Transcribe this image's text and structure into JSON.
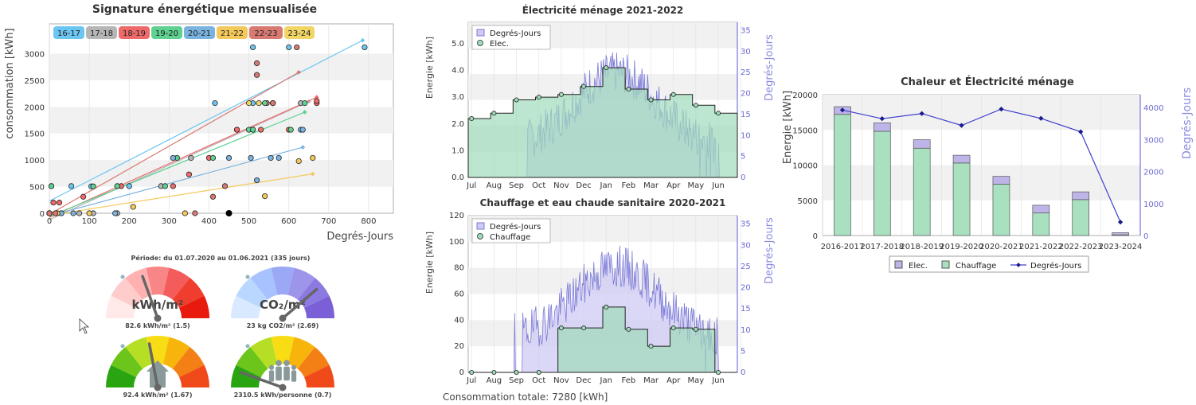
{
  "colors": {
    "blue_axis": "#5a5ad8",
    "elec": "#bfb4e8",
    "chauffage": "#a9e0bf",
    "line": "#2a2ab0"
  },
  "chart_data": [
    {
      "id": "signature",
      "type": "scatter",
      "title": "Signature énergétique mensualisée",
      "xlabel": "Degrés-Jours",
      "ylabel": "consommation [kWh]",
      "xlim": [
        -5,
        860
      ],
      "ylim": [
        -250,
        3300
      ],
      "xticks": [
        0,
        100,
        200,
        300,
        400,
        500,
        600,
        700,
        800
      ],
      "yticks": [
        0,
        500,
        1000,
        1500,
        2000,
        2500,
        3000
      ],
      "legend_position": "top",
      "series": [
        {
          "name": "16-17",
          "color": "#6bc6f2",
          "points": [
            [
              5,
              510
            ],
            [
              55,
              510
            ],
            [
              105,
              505
            ],
            [
              200,
              510
            ],
            [
              415,
              2070
            ],
            [
              510,
              2070
            ],
            [
              510,
              3120
            ],
            [
              600,
              3120
            ],
            [
              790,
              3120
            ]
          ],
          "fit": [
            [
              0,
              230
            ],
            [
              785,
              3250
            ]
          ]
        },
        {
          "name": "17-18",
          "color": "#b6b6b6",
          "points": [
            [
              0,
              0
            ],
            [
              30,
              0
            ],
            [
              75,
              0
            ],
            [
              110,
              0
            ],
            [
              170,
              0
            ],
            [
              280,
              510
            ],
            [
              355,
              1040
            ],
            [
              470,
              1570
            ],
            [
              510,
              1570
            ],
            [
              560,
              2070
            ],
            [
              630,
              2070
            ]
          ],
          "fit": [
            [
              0,
              -120
            ],
            [
              650,
              2100
            ]
          ]
        },
        {
          "name": "18-19",
          "color": "#ee6a6a",
          "points": [
            [
              0,
              0
            ],
            [
              10,
              200
            ],
            [
              25,
              200
            ],
            [
              85,
              310
            ],
            [
              180,
              510
            ],
            [
              310,
              510
            ],
            [
              350,
              730
            ],
            [
              400,
              1040
            ],
            [
              470,
              1570
            ],
            [
              530,
              1570
            ],
            [
              545,
              2070
            ],
            [
              560,
              2070
            ],
            [
              670,
              2070
            ],
            [
              600,
              1570
            ],
            [
              670,
              2110
            ]
          ],
          "fit": [
            [
              0,
              -80
            ],
            [
              670,
              2180
            ]
          ]
        },
        {
          "name": "19-20",
          "color": "#5fd191",
          "points": [
            [
              0,
              0
            ],
            [
              5,
              510
            ],
            [
              110,
              505
            ],
            [
              170,
              510
            ],
            [
              290,
              510
            ],
            [
              320,
              1040
            ],
            [
              410,
              1040
            ],
            [
              500,
              1570
            ],
            [
              510,
              1570
            ],
            [
              540,
              2070
            ],
            [
              605,
              1570
            ],
            [
              640,
              2070
            ]
          ],
          "fit": [
            [
              0,
              -60
            ],
            [
              640,
              1900
            ]
          ]
        },
        {
          "name": "20-21",
          "color": "#7ab3df",
          "points": [
            [
              0,
              0
            ],
            [
              30,
              0
            ],
            [
              60,
              0
            ],
            [
              165,
              0
            ],
            [
              310,
              1040
            ],
            [
              450,
              1040
            ],
            [
              505,
              1040
            ],
            [
              520,
              620
            ],
            [
              555,
              1040
            ],
            [
              575,
              1040
            ],
            [
              630,
              1570
            ],
            [
              635,
              1570
            ]
          ],
          "fit": [
            [
              0,
              -50
            ],
            [
              635,
              1240
            ]
          ]
        },
        {
          "name": "21-22",
          "color": "#f4c95b",
          "points": [
            [
              0,
              0
            ],
            [
              20,
              0
            ],
            [
              100,
              0
            ],
            [
              210,
              120
            ],
            [
              340,
              0
            ],
            [
              540,
              320
            ],
            [
              625,
              980
            ],
            [
              660,
              1040
            ]
          ],
          "fit": [
            [
              0,
              -40
            ],
            [
              660,
              740
            ]
          ]
        },
        {
          "name": "22-23",
          "color": "#d97a72",
          "points": [
            [
              0,
              0
            ],
            [
              15,
              0
            ],
            [
              365,
              0
            ],
            [
              410,
              310
            ],
            [
              440,
              510
            ],
            [
              520,
              2820
            ],
            [
              520,
              2600
            ],
            [
              560,
              2070
            ],
            [
              620,
              3120
            ]
          ],
          "fit": [
            [
              0,
              -20
            ],
            [
              625,
              2650
            ]
          ]
        },
        {
          "name": "23-24",
          "color": "#f1d565",
          "points": [
            [
              450,
              0
            ],
            [
              500,
              2070
            ],
            [
              525,
              2070
            ]
          ],
          "fit": []
        }
      ]
    },
    {
      "id": "elec",
      "type": "area",
      "title": "Électricité ménage 2021-2022",
      "ylabel": "Energie [kWh]",
      "y2label": "Degrés-Jours",
      "ylim": [
        0,
        5.8
      ],
      "yticks": [
        "0.0",
        "1.0",
        "2.0",
        "3.0",
        "4.0",
        "5.0"
      ],
      "y2lim": [
        0,
        37
      ],
      "y2ticks": [
        0,
        5,
        10,
        15,
        20,
        25,
        30,
        35
      ],
      "categories": [
        "Jul",
        "Aug",
        "Sep",
        "Oct",
        "Nov",
        "Dec",
        "Jan",
        "Feb",
        "Mar",
        "Apr",
        "May",
        "Jun"
      ],
      "values": [
        2.2,
        2.4,
        2.9,
        3.0,
        3.1,
        3.4,
        4.1,
        3.3,
        2.9,
        3.1,
        2.7,
        2.4
      ],
      "series": [
        {
          "name": "Degrés-Jours"
        },
        {
          "name": "Elec."
        }
      ]
    },
    {
      "id": "chauffage",
      "type": "area",
      "title": "Chauffage et eau chaude sanitaire 2020-2021",
      "ylabel": "Energie [kWh]",
      "y2label": "Degrés-Jours",
      "ylim": [
        0,
        120
      ],
      "yticks": [
        0,
        20,
        40,
        60,
        80,
        100,
        120
      ],
      "y2lim": [
        0,
        37
      ],
      "y2ticks": [
        0,
        5,
        10,
        15,
        20,
        25,
        30,
        35
      ],
      "categories": [
        "Jul",
        "Aug",
        "Sep",
        "Oct",
        "Nov",
        "Dec",
        "Jan",
        "Feb",
        "Mar",
        "Apr",
        "May",
        "Jun"
      ],
      "values": [
        0,
        0,
        0,
        0,
        34,
        34,
        50,
        33,
        20,
        34,
        33,
        0
      ],
      "series": [
        {
          "name": "Degrés-Jours"
        },
        {
          "name": "Chauffage"
        }
      ],
      "footer": "Consommation totale: 7280 [kWh]"
    },
    {
      "id": "chaleur",
      "type": "bar",
      "title": "Chaleur et Électricité ménage",
      "ylabel": "Energie [kWh]",
      "y2label": "Degrés-Jours",
      "ylim": [
        0,
        20000
      ],
      "yticks": [
        0,
        5000,
        10000,
        15000,
        20000
      ],
      "y2lim": [
        0,
        4400
      ],
      "y2ticks": [
        0,
        1000,
        2000,
        3000,
        4000
      ],
      "categories": [
        "2016-2017",
        "2017-2018",
        "2018-2019",
        "2019-2020",
        "2020-2021",
        "2021-2022",
        "2022-2023",
        "2023-2024"
      ],
      "series": [
        {
          "name": "Elec.",
          "values": [
            1100,
            1200,
            1200,
            1100,
            1100,
            1100,
            1100,
            300
          ]
        },
        {
          "name": "Chauffage",
          "values": [
            17200,
            14800,
            12400,
            10300,
            7300,
            3200,
            5100,
            100
          ]
        },
        {
          "name": "Degrés-Jours",
          "values": [
            3920,
            3650,
            3810,
            3440,
            3950,
            3660,
            3240,
            420
          ]
        }
      ]
    }
  ],
  "gauges": {
    "period": "Période: du 01.07.2020 au 01.06.2021 (335 jours)",
    "items": [
      {
        "label": "kWh/m²",
        "value_text": "82.6 kWh/m² (1.5)",
        "needle": -0.22,
        "scheme": "red"
      },
      {
        "label": "CO₂/m²",
        "value_text": "23 kg CO2/m² (2.69)",
        "needle": 0.55,
        "scheme": "purple"
      },
      {
        "label": "house",
        "value_text": "92.4 kWh/m² (1.67)",
        "needle": -0.12,
        "scheme": "rainbow"
      },
      {
        "label": "people",
        "value_text": "2310.5 kWh/personne (0.7)",
        "needle": -0.78,
        "scheme": "rainbow"
      }
    ]
  }
}
